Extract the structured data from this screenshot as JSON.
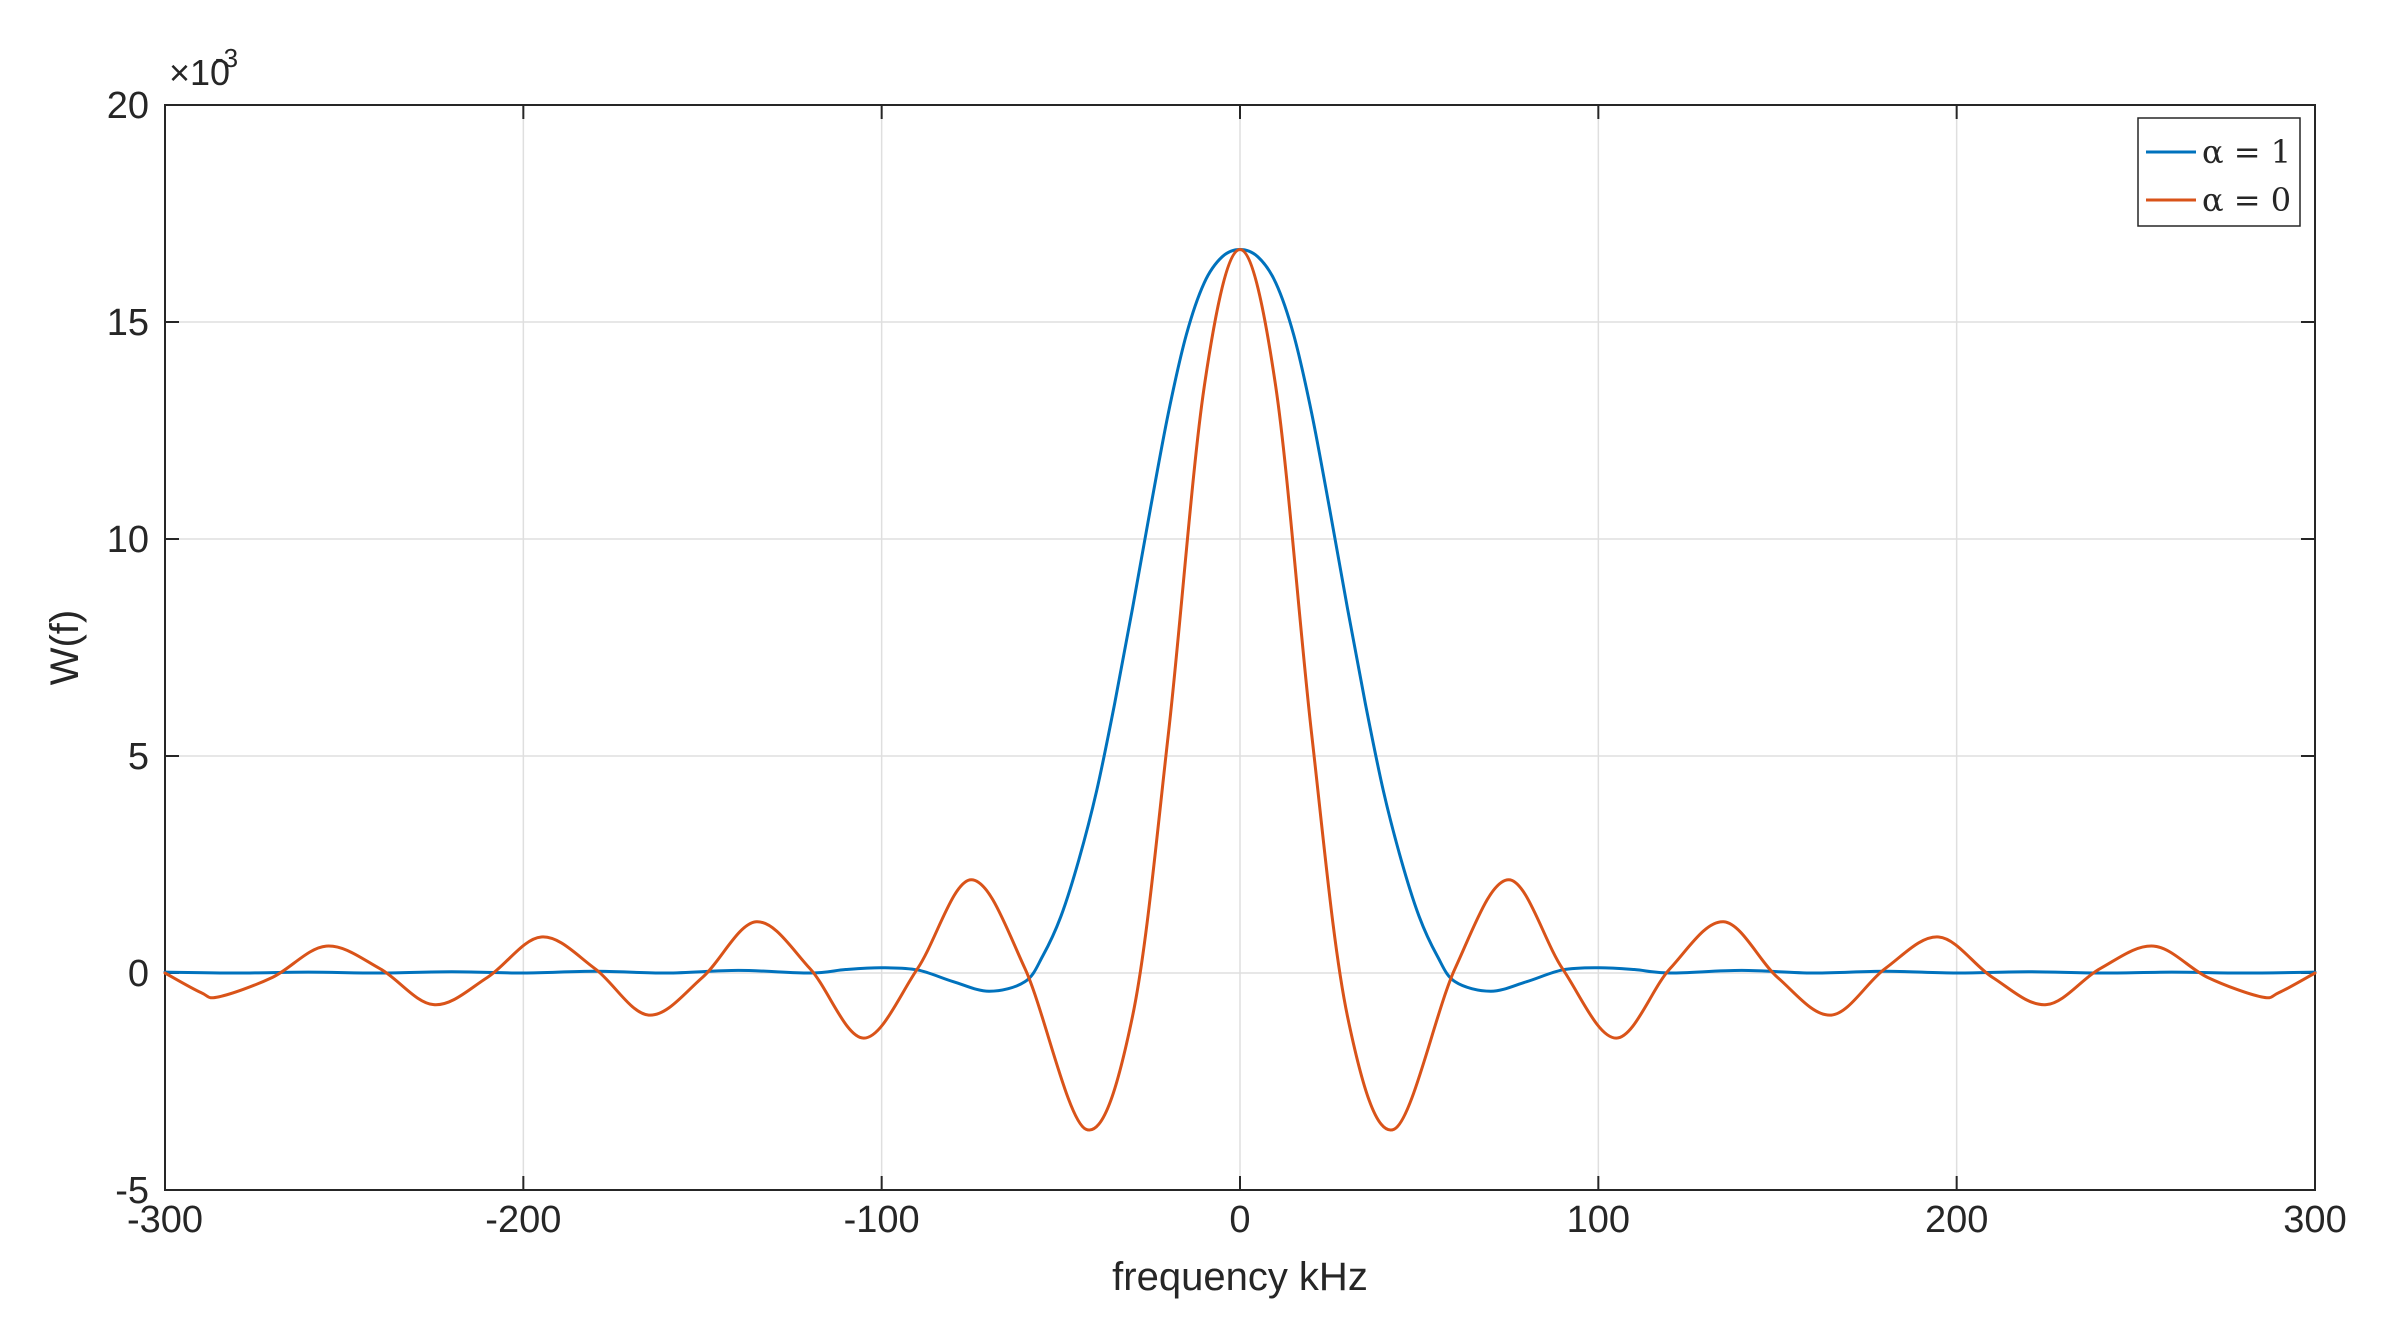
{
  "chart_data": {
    "type": "line",
    "title": "",
    "xlabel": "frequency kHz",
    "ylabel": "W(f)",
    "xlim": [
      -300,
      300
    ],
    "ylim": [
      -5,
      20
    ],
    "y_scale_note": "×10",
    "y_scale_exponent": "-3",
    "x_ticks": [
      -300,
      -200,
      -100,
      0,
      100,
      200,
      300
    ],
    "x_tick_labels": [
      "-300",
      "-200",
      "-100",
      "0",
      "100",
      "200",
      "300"
    ],
    "y_ticks": [
      -5,
      0,
      5,
      10,
      15,
      20
    ],
    "y_tick_labels": [
      "-5",
      "0",
      "5",
      "10",
      "15",
      "20"
    ],
    "grid": true,
    "legend_position": "top-right",
    "series": [
      {
        "name": "α = 1",
        "color": "#0072BD",
        "x": [
          -300,
          -280,
          -260,
          -240,
          -220,
          -200,
          -180,
          -160,
          -140,
          -120,
          -110,
          -100,
          -90,
          -80,
          -70,
          -60,
          -55,
          -50,
          -45,
          -40,
          -35,
          -30,
          -25,
          -20,
          -15,
          -10,
          -5,
          0,
          5,
          10,
          15,
          20,
          25,
          30,
          35,
          40,
          45,
          50,
          55,
          60,
          70,
          80,
          90,
          100,
          110,
          120,
          140,
          160,
          180,
          200,
          220,
          240,
          260,
          280,
          300
        ],
        "y": [
          0.02,
          0.0,
          0.02,
          0.0,
          0.03,
          0.0,
          0.04,
          0.0,
          0.06,
          0.0,
          0.08,
          0.12,
          0.07,
          -0.2,
          -0.42,
          -0.2,
          0.4,
          1.3,
          2.6,
          4.2,
          6.2,
          8.4,
          10.7,
          12.9,
          14.7,
          15.9,
          16.5,
          16.67,
          16.5,
          15.9,
          14.7,
          12.9,
          10.7,
          8.4,
          6.2,
          4.2,
          2.6,
          1.3,
          0.4,
          -0.2,
          -0.42,
          -0.2,
          0.07,
          0.12,
          0.08,
          0.0,
          0.06,
          0.0,
          0.04,
          0.0,
          0.03,
          0.0,
          0.02,
          0.0,
          0.02
        ]
      },
      {
        "name": "α = 0",
        "color": "#D95319",
        "x": [
          -300,
          -290,
          -285,
          -270,
          -255,
          -240,
          -225,
          -210,
          -195,
          -180,
          -165,
          -150,
          -135,
          -120,
          -105,
          -90,
          -75,
          -60,
          -43,
          -30,
          -20,
          -10,
          0,
          10,
          20,
          30,
          43,
          60,
          75,
          90,
          105,
          120,
          135,
          150,
          165,
          180,
          195,
          210,
          225,
          240,
          255,
          270,
          285,
          290,
          300
        ],
        "y": [
          0.0,
          -0.45,
          -0.55,
          -0.1,
          0.62,
          0.1,
          -0.73,
          -0.1,
          0.83,
          0.1,
          -0.97,
          -0.1,
          1.18,
          0.1,
          -1.5,
          0.1,
          2.15,
          0.1,
          -3.6,
          -1.0,
          5.5,
          13.5,
          16.67,
          13.5,
          5.5,
          -1.0,
          -3.6,
          0.1,
          2.15,
          0.1,
          -1.5,
          0.1,
          1.18,
          -0.1,
          -0.97,
          0.1,
          0.83,
          -0.1,
          -0.73,
          0.1,
          0.62,
          -0.1,
          -0.55,
          -0.45,
          0.0
        ]
      }
    ]
  }
}
